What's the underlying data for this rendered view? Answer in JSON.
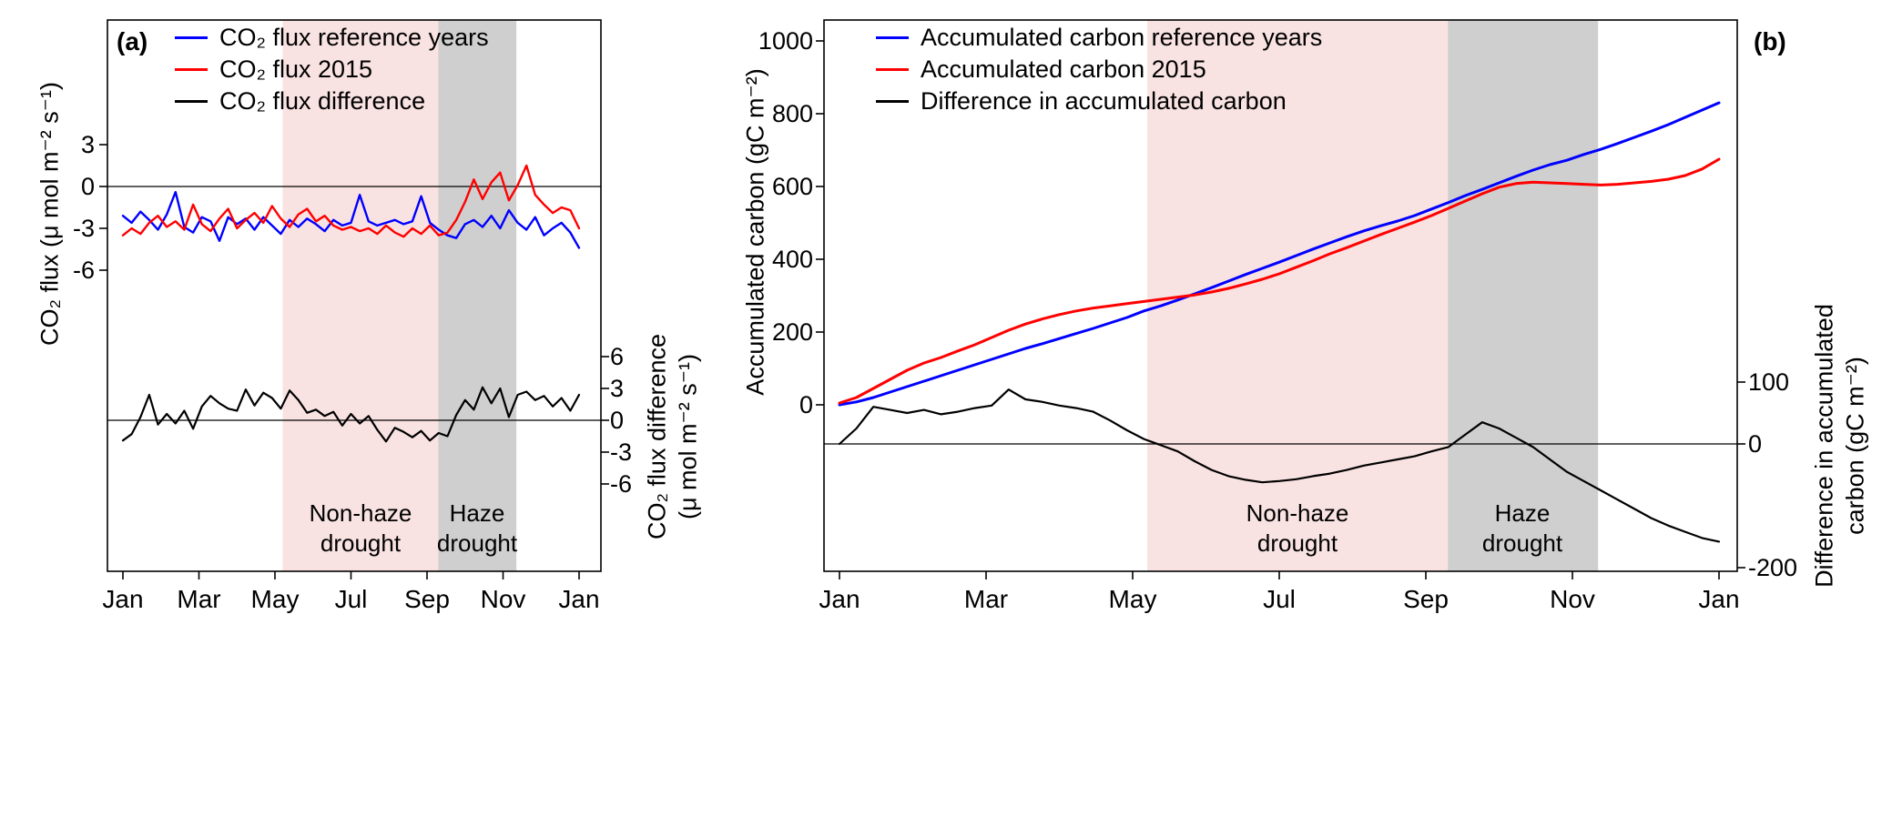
{
  "chart_data": [
    {
      "type": "line",
      "panel_label": "(a)",
      "x_ticks": [
        {
          "label": "Jan",
          "month": 0
        },
        {
          "label": "Mar",
          "month": 2
        },
        {
          "label": "May",
          "month": 4
        },
        {
          "label": "Jul",
          "month": 6
        },
        {
          "label": "Sep",
          "month": 8
        },
        {
          "label": "Nov",
          "month": 10
        },
        {
          "label": "Jan",
          "month": 12
        }
      ],
      "left_axis": {
        "title": "CO₂ flux (μ mol m⁻² s⁻¹)",
        "ticks": [
          3,
          0,
          -3,
          -6
        ],
        "zero_line": true
      },
      "right_axis": {
        "title_lines": [
          "CO₂ flux difference",
          "(μ mol m⁻² s⁻¹)"
        ],
        "ticks": [
          6,
          3,
          0,
          -3,
          -6
        ],
        "zero_line": true
      },
      "bands": [
        {
          "label_lines": [
            "Non-haze",
            "drought"
          ],
          "from_month": 4.2,
          "to_month": 8.3,
          "color": "#f9e2e2"
        },
        {
          "label_lines": [
            "Haze",
            "drought"
          ],
          "from_month": 8.3,
          "to_month": 10.35,
          "color": "#cfcfcf"
        }
      ],
      "series": [
        {
          "name": "CO₂ flux reference years",
          "color": "#0000ff",
          "axis": "left",
          "stroke_width": 2.4,
          "values": [
            -2.1,
            -2.6,
            -1.8,
            -2.4,
            -3.1,
            -2.0,
            -0.4,
            -2.9,
            -3.3,
            -2.2,
            -2.5,
            -3.9,
            -2.2,
            -2.7,
            -2.3,
            -3.1,
            -2.2,
            -2.8,
            -3.4,
            -2.4,
            -2.9,
            -2.3,
            -2.7,
            -3.2,
            -2.4,
            -2.8,
            -2.6,
            -0.6,
            -2.5,
            -2.8,
            -2.6,
            -2.4,
            -2.7,
            -2.5,
            -0.7,
            -2.6,
            -3.1,
            -3.5,
            -3.7,
            -2.7,
            -2.4,
            -2.9,
            -2.1,
            -3.0,
            -1.7,
            -2.6,
            -3.1,
            -2.2,
            -3.5,
            -3.0,
            -2.6,
            -3.3,
            -4.4
          ]
        },
        {
          "name": "CO₂ flux 2015",
          "color": "#ff0000",
          "axis": "left",
          "stroke_width": 2.4,
          "values": [
            -3.5,
            -3.0,
            -3.4,
            -2.6,
            -2.1,
            -2.9,
            -2.5,
            -3.1,
            -1.3,
            -2.7,
            -3.2,
            -2.3,
            -1.6,
            -3.0,
            -2.4,
            -1.9,
            -2.6,
            -1.4,
            -2.3,
            -2.9,
            -2.0,
            -1.6,
            -2.5,
            -2.1,
            -2.8,
            -3.1,
            -2.9,
            -3.2,
            -3.0,
            -3.4,
            -2.8,
            -3.3,
            -3.6,
            -3.0,
            -3.4,
            -2.8,
            -3.5,
            -3.3,
            -2.4,
            -1.1,
            0.5,
            -0.9,
            0.3,
            1.0,
            -1.0,
            0.1,
            1.5,
            -0.6,
            -1.3,
            -1.9,
            -1.5,
            -1.7,
            -3.0
          ]
        },
        {
          "name": "CO₂ flux difference",
          "color": "#000000",
          "axis": "right",
          "stroke_width": 2.2,
          "values": [
            -1.9,
            -1.3,
            0.3,
            2.4,
            -0.4,
            0.6,
            -0.3,
            0.9,
            -0.8,
            1.3,
            2.3,
            1.6,
            1.1,
            0.9,
            2.9,
            1.4,
            2.6,
            2.1,
            1.1,
            2.8,
            1.9,
            0.7,
            1.0,
            0.4,
            0.8,
            -0.5,
            0.6,
            -0.3,
            0.4,
            -0.9,
            -2.0,
            -0.7,
            -1.1,
            -1.6,
            -1.0,
            -1.9,
            -1.2,
            -1.5,
            0.5,
            1.9,
            1.0,
            3.1,
            1.6,
            3.0,
            0.3,
            2.4,
            2.7,
            1.9,
            2.3,
            1.3,
            2.1,
            0.9,
            2.4
          ]
        }
      ]
    },
    {
      "type": "line",
      "panel_label": "(b)",
      "x_ticks": [
        {
          "label": "Jan",
          "month": 0
        },
        {
          "label": "Mar",
          "month": 2
        },
        {
          "label": "May",
          "month": 4
        },
        {
          "label": "Jul",
          "month": 6
        },
        {
          "label": "Sep",
          "month": 8
        },
        {
          "label": "Nov",
          "month": 10
        },
        {
          "label": "Jan",
          "month": 12
        }
      ],
      "left_axis": {
        "title": "Accumulated carbon (gC m⁻²)",
        "ticks": [
          1000,
          800,
          600,
          400,
          200,
          0
        ],
        "zero_line": false
      },
      "right_axis": {
        "title_lines": [
          "Difference in accumulated",
          "carbon (gC m⁻²)"
        ],
        "ticks": [
          100,
          0,
          -200
        ],
        "zero_line": true
      },
      "bands": [
        {
          "label_lines": [
            "Non-haze",
            "drought"
          ],
          "from_month": 4.2,
          "to_month": 8.3,
          "color": "#f9e2e2"
        },
        {
          "label_lines": [
            "Haze",
            "drought"
          ],
          "from_month": 8.3,
          "to_month": 10.35,
          "color": "#cfcfcf"
        }
      ],
      "series": [
        {
          "name": "Accumulated carbon reference years",
          "color": "#0000ff",
          "axis": "left",
          "stroke_width": 3,
          "values": [
            0,
            8,
            20,
            35,
            50,
            65,
            80,
            95,
            110,
            125,
            140,
            155,
            168,
            182,
            196,
            210,
            225,
            240,
            258,
            272,
            288,
            305,
            322,
            340,
            358,
            375,
            392,
            410,
            428,
            445,
            462,
            478,
            492,
            505,
            520,
            538,
            556,
            575,
            592,
            610,
            628,
            645,
            660,
            672,
            688,
            702,
            718,
            735,
            752,
            770,
            790,
            810,
            830
          ]
        },
        {
          "name": "Accumulated carbon 2015",
          "color": "#ff0000",
          "axis": "left",
          "stroke_width": 3,
          "values": [
            5,
            20,
            45,
            70,
            95,
            115,
            130,
            148,
            165,
            185,
            205,
            222,
            236,
            248,
            258,
            266,
            272,
            278,
            284,
            290,
            296,
            302,
            310,
            320,
            332,
            345,
            360,
            378,
            396,
            415,
            432,
            450,
            468,
            485,
            502,
            520,
            540,
            560,
            580,
            598,
            608,
            612,
            610,
            608,
            606,
            604,
            606,
            610,
            614,
            620,
            630,
            648,
            675
          ]
        },
        {
          "name": "Difference in accumulated carbon",
          "color": "#000000",
          "axis": "right",
          "stroke_width": 2.2,
          "values": [
            0,
            25,
            60,
            55,
            50,
            55,
            48,
            52,
            58,
            62,
            88,
            72,
            68,
            62,
            58,
            52,
            38,
            22,
            8,
            -2,
            -12,
            -28,
            -42,
            -52,
            -58,
            -62,
            -60,
            -57,
            -52,
            -48,
            -42,
            -35,
            -30,
            -25,
            -20,
            -12,
            -5,
            15,
            35,
            25,
            10,
            -5,
            -25,
            -45,
            -60,
            -75,
            -90,
            -105,
            -120,
            -132,
            -142,
            -152,
            -158
          ]
        }
      ]
    }
  ]
}
